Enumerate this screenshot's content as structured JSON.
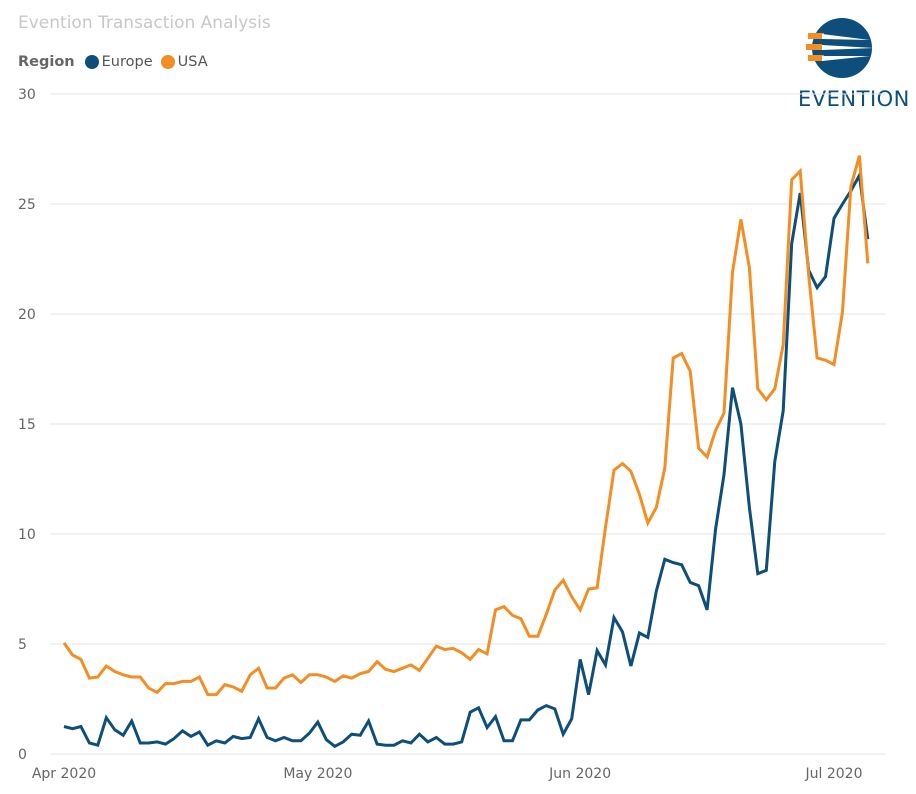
{
  "title": "Evention Transaction Analysis",
  "logo_text": "EVENTION",
  "colors": {
    "Europe": "#0d4f7a",
    "USA": "#f28e23",
    "grid": "#e6e6e6",
    "tick": "#666666"
  },
  "chart_data": {
    "type": "line",
    "title": "Evention Transaction Analysis",
    "legend_title": "Region",
    "legend_position": "top-left",
    "xlabel": "",
    "ylabel": "",
    "ylim": [
      0,
      30
    ],
    "yticks": [
      0,
      5,
      10,
      15,
      20,
      25,
      30
    ],
    "x_start": "2020-04-01",
    "x_unit": "day",
    "xticks": [
      {
        "day": 0,
        "label": "Apr 2020"
      },
      {
        "day": 30,
        "label": "May 2020"
      },
      {
        "day": 61,
        "label": "Jun 2020"
      },
      {
        "day": 91,
        "label": "Jul 2020"
      }
    ],
    "grid": true,
    "series": [
      {
        "name": "Europe",
        "values": [
          1.25,
          1.15,
          1.25,
          0.5,
          0.4,
          1.65,
          1.1,
          0.85,
          1.5,
          0.5,
          0.5,
          0.55,
          0.45,
          0.7,
          1.05,
          0.8,
          1.0,
          0.4,
          0.6,
          0.5,
          0.8,
          0.7,
          0.75,
          1.6,
          0.75,
          0.6,
          0.75,
          0.6,
          0.6,
          0.95,
          1.45,
          0.65,
          0.35,
          0.55,
          0.9,
          0.85,
          1.5,
          0.45,
          0.4,
          0.4,
          0.6,
          0.5,
          0.9,
          0.55,
          0.75,
          0.45,
          0.45,
          0.55,
          1.9,
          2.1,
          1.2,
          1.7,
          0.6,
          0.6,
          1.55,
          1.55,
          2.0,
          2.2,
          2.05,
          0.9,
          1.6,
          4.3,
          2.7,
          4.7,
          4.05,
          6.2,
          5.55,
          4.0,
          5.5,
          5.3,
          7.4,
          8.85,
          8.7,
          8.6,
          7.8,
          7.65,
          6.55,
          10.2,
          12.7,
          16.65,
          15.0,
          11.2,
          8.2,
          8.35,
          13.3,
          15.6,
          23.2,
          25.5,
          22.0,
          21.2,
          21.7,
          24.35,
          25.0,
          25.6,
          26.3,
          23.4
        ]
      },
      {
        "name": "USA",
        "values": [
          5.05,
          4.5,
          4.3,
          3.45,
          3.5,
          4.0,
          3.75,
          3.6,
          3.5,
          3.5,
          3.0,
          2.8,
          3.2,
          3.2,
          3.3,
          3.3,
          3.5,
          2.7,
          2.7,
          3.15,
          3.05,
          2.85,
          3.6,
          3.9,
          3.0,
          3.0,
          3.45,
          3.6,
          3.25,
          3.6,
          3.6,
          3.5,
          3.3,
          3.55,
          3.45,
          3.65,
          3.75,
          4.2,
          3.85,
          3.75,
          3.9,
          4.05,
          3.8,
          4.35,
          4.9,
          4.75,
          4.8,
          4.6,
          4.3,
          4.75,
          4.55,
          6.55,
          6.7,
          6.3,
          6.15,
          5.35,
          5.35,
          6.35,
          7.45,
          7.9,
          7.15,
          6.55,
          7.5,
          7.55,
          10.3,
          12.9,
          13.2,
          12.85,
          11.8,
          10.5,
          11.2,
          13.0,
          18.0,
          18.2,
          17.4,
          13.9,
          13.5,
          14.7,
          15.5,
          21.9,
          24.3,
          22.1,
          16.6,
          16.1,
          16.6,
          18.6,
          26.1,
          26.5,
          21.8,
          18.0,
          17.9,
          17.7,
          20.1,
          25.8,
          27.2,
          22.3
        ]
      }
    ]
  }
}
